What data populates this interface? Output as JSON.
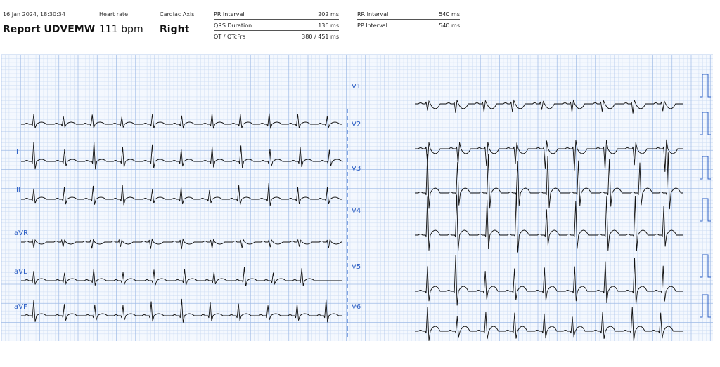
{
  "header": {
    "date": "16 Jan 2024, 18:30:34",
    "title": "Report UDVEMW",
    "metrics": [
      {
        "label": "Heart rate",
        "value": "111 bpm"
      },
      {
        "label": "Cardiac Axis",
        "value": "Right"
      }
    ],
    "intervals": [
      {
        "label": "PR Interval",
        "value": "202 ms"
      },
      {
        "label": "QRS Duration",
        "value": "136 ms"
      },
      {
        "label": "QT / QTcFra",
        "value": "380 / 451 ms"
      }
    ],
    "intervals2": [
      {
        "label": "RR Interval",
        "value": "540 ms"
      },
      {
        "label": "PP Interval",
        "value": "540 ms"
      }
    ]
  },
  "leads": {
    "limb": [
      "I",
      "II",
      "III",
      "aVR",
      "aVL",
      "aVF"
    ],
    "chest": [
      "V1",
      "V2",
      "V3",
      "V4",
      "V5",
      "V6"
    ]
  }
}
